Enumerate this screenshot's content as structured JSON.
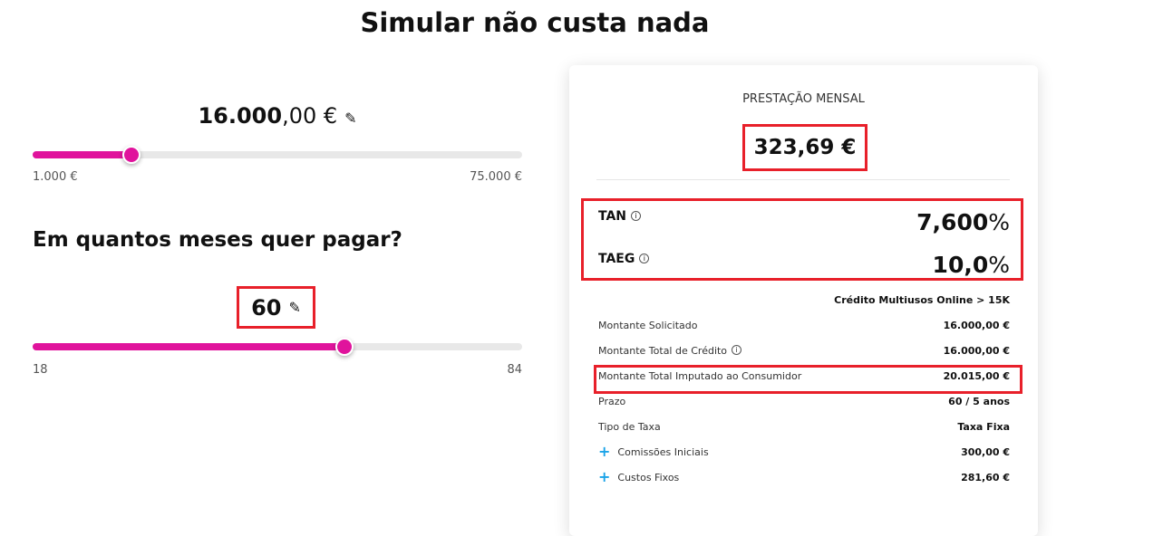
{
  "title": "Simular não custa nada",
  "amount": {
    "int": "16.000",
    "dec": ",00 €",
    "min": "1.000 €",
    "max": "75.000 €",
    "value": 16000,
    "range": [
      1000,
      75000
    ],
    "edit_icon": "pencil-icon"
  },
  "months": {
    "question": "Em quantos meses quer pagar?",
    "value_label": "60",
    "min": "18",
    "max": "84",
    "value": 60,
    "range": [
      18,
      84
    ],
    "edit_icon": "pencil-icon"
  },
  "summary": {
    "header": "PRESTAÇÃO MENSAL",
    "monthly": "323,69 €",
    "tan_label": "TAN",
    "tan_value": "7,600",
    "taeg_label": "TAEG",
    "taeg_value": "10,0",
    "percent": "%",
    "product": "Crédito Multiusos Online > 15K",
    "rows": [
      {
        "label": "Montante Solicitado",
        "value": "16.000,00 €"
      },
      {
        "label": "Montante Total de Crédito",
        "value": "16.000,00 €"
      },
      {
        "label": "Montante Total Imputado ao Consumidor",
        "value": "20.015,00 €"
      },
      {
        "label": "Prazo",
        "value": "60 / 5 anos"
      },
      {
        "label": "Tipo de Taxa",
        "value": "Taxa Fixa"
      },
      {
        "label": "Comissões Iniciais",
        "value": "300,00 €"
      },
      {
        "label": "Custos Fixos",
        "value": "281,60 €"
      }
    ]
  },
  "colors": {
    "accent": "#e0139c",
    "highlight": "#e8202a",
    "plus": "#1aa3e8"
  }
}
